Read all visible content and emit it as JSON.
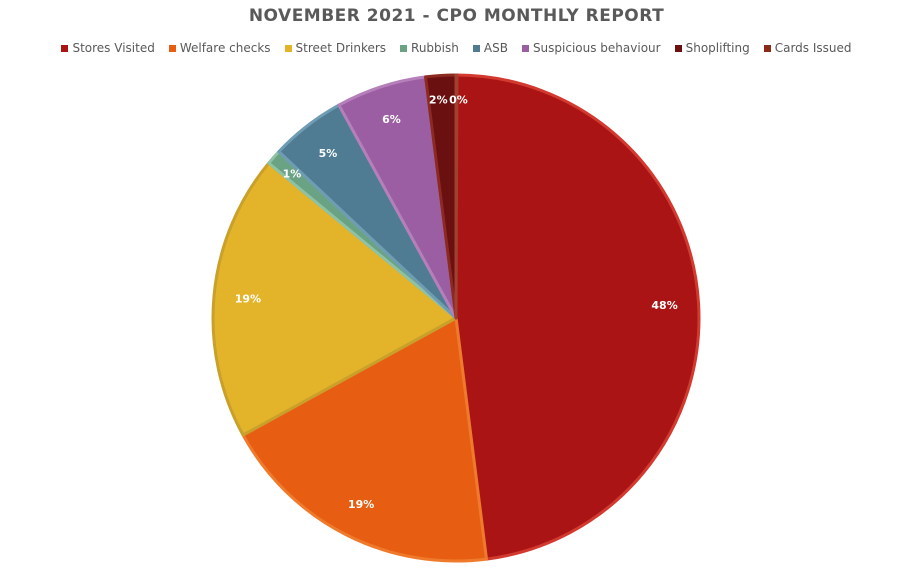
{
  "chart_data": {
    "type": "pie",
    "title": "NOVEMBER 2021 - CPO MONTHLY REPORT",
    "legend_position": "top",
    "categories": [
      "Stores Visited",
      "Welfare checks",
      "Street Drinkers",
      "Rubbish",
      "ASB",
      "Suspicious behaviour",
      "Shoplifting",
      "Cards Issued"
    ],
    "values": [
      48,
      19,
      19,
      1,
      5,
      6,
      2,
      0
    ],
    "labels": [
      "48%",
      "19%",
      "19%",
      "1%",
      "5%",
      "6%",
      "2%",
      "0%"
    ],
    "colors": [
      "#ab1414",
      "#e75e12",
      "#e3b42a",
      "#6aa383",
      "#4f7b93",
      "#9c5ea2",
      "#6b1010",
      "#8b2a18"
    ],
    "stroke_colors": [
      "#d23a30",
      "#f07a2c",
      "#c9a02a",
      "#8fc2a5",
      "#6e9cb3",
      "#b57fba",
      "#8c2a22",
      "#a04030"
    ]
  }
}
